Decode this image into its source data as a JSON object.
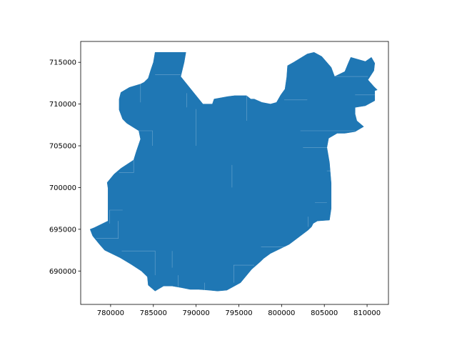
{
  "chart_data": {
    "type": "map",
    "title": "",
    "xlabel": "",
    "ylabel": "",
    "xlim": [
      776500,
      812500
    ],
    "ylim": [
      686000,
      717500
    ],
    "fill_color": "#1f77b4",
    "grid": false,
    "legend": false,
    "x_ticks": [
      780000,
      785000,
      790000,
      795000,
      800000,
      805000,
      810000
    ],
    "x_tick_labels": [
      "780000",
      "785000",
      "790000",
      "795000",
      "800000",
      "805000",
      "810000"
    ],
    "y_ticks": [
      690000,
      695000,
      700000,
      705000,
      710000,
      715000
    ],
    "y_tick_labels": [
      "690000",
      "695000",
      "700000",
      "705000",
      "710000",
      "715000"
    ],
    "polygon": [
      [
        785200,
        716200
      ],
      [
        788800,
        716200
      ],
      [
        788600,
        715000
      ],
      [
        788200,
        713300
      ],
      [
        789700,
        711400
      ],
      [
        790800,
        710000
      ],
      [
        791900,
        710000
      ],
      [
        792100,
        710600
      ],
      [
        793700,
        710900
      ],
      [
        794500,
        711000
      ],
      [
        795900,
        711000
      ],
      [
        796400,
        710600
      ],
      [
        796800,
        710600
      ],
      [
        797700,
        710200
      ],
      [
        798700,
        710000
      ],
      [
        799400,
        710200
      ],
      [
        799900,
        711100
      ],
      [
        800400,
        711800
      ],
      [
        800600,
        713200
      ],
      [
        800700,
        714600
      ],
      [
        801400,
        715000
      ],
      [
        803000,
        716000
      ],
      [
        803800,
        716200
      ],
      [
        804700,
        715700
      ],
      [
        805800,
        714400
      ],
      [
        806200,
        713300
      ],
      [
        807400,
        713900
      ],
      [
        807800,
        714900
      ],
      [
        808100,
        715600
      ],
      [
        809800,
        715100
      ],
      [
        810500,
        715600
      ],
      [
        810900,
        714900
      ],
      [
        810800,
        714000
      ],
      [
        810100,
        712900
      ],
      [
        810800,
        712100
      ],
      [
        811200,
        711700
      ],
      [
        810900,
        711600
      ],
      [
        810900,
        710400
      ],
      [
        809800,
        709800
      ],
      [
        808600,
        709600
      ],
      [
        808600,
        708800
      ],
      [
        808800,
        708000
      ],
      [
        809600,
        707300
      ],
      [
        808600,
        706700
      ],
      [
        807400,
        706500
      ],
      [
        806500,
        706500
      ],
      [
        805500,
        705900
      ],
      [
        805300,
        704800
      ],
      [
        805600,
        703000
      ],
      [
        805800,
        700500
      ],
      [
        805800,
        697500
      ],
      [
        805600,
        696100
      ],
      [
        804200,
        696000
      ],
      [
        803700,
        695700
      ],
      [
        803500,
        695300
      ],
      [
        803100,
        694900
      ],
      [
        800900,
        693200
      ],
      [
        798700,
        692100
      ],
      [
        797900,
        691500
      ],
      [
        797500,
        691100
      ],
      [
        796500,
        690200
      ],
      [
        795200,
        688600
      ],
      [
        793600,
        687700
      ],
      [
        792500,
        687600
      ],
      [
        791500,
        687700
      ],
      [
        790300,
        687800
      ],
      [
        789300,
        687800
      ],
      [
        788300,
        688000
      ],
      [
        787200,
        688200
      ],
      [
        786200,
        688200
      ],
      [
        785200,
        687600
      ],
      [
        784400,
        688300
      ],
      [
        784300,
        689300
      ],
      [
        783600,
        690000
      ],
      [
        782400,
        690800
      ],
      [
        781100,
        691600
      ],
      [
        779300,
        692500
      ],
      [
        778700,
        693200
      ],
      [
        777900,
        694200
      ],
      [
        777600,
        695000
      ],
      [
        778100,
        695200
      ],
      [
        779700,
        696000
      ],
      [
        779700,
        699900
      ],
      [
        779600,
        700600
      ],
      [
        780400,
        701600
      ],
      [
        781200,
        702300
      ],
      [
        782700,
        703300
      ],
      [
        783000,
        704300
      ],
      [
        783500,
        705800
      ],
      [
        783300,
        706800
      ],
      [
        781900,
        707700
      ],
      [
        781400,
        708200
      ],
      [
        781000,
        709300
      ],
      [
        781000,
        710600
      ],
      [
        781200,
        711400
      ],
      [
        782200,
        712000
      ],
      [
        783500,
        712400
      ],
      [
        783900,
        712600
      ],
      [
        784400,
        713100
      ],
      [
        784700,
        714100
      ],
      [
        785000,
        715000
      ],
      [
        785200,
        716200
      ]
    ],
    "seams": [
      [
        [
          783500,
          712400
        ],
        [
          783500,
          710200
        ]
      ],
      [
        [
          785200,
          713500
        ],
        [
          788200,
          713500
        ]
      ],
      [
        [
          781100,
          706800
        ],
        [
          784900,
          706800
        ],
        [
          784900,
          705000
        ]
      ],
      [
        [
          802500,
          704800
        ],
        [
          805300,
          704800
        ]
      ],
      [
        [
          802200,
          706800
        ],
        [
          806500,
          706800
        ],
        [
          808600,
          706800
        ]
      ],
      [
        [
          806300,
          713300
        ],
        [
          808600,
          713300
        ],
        [
          810100,
          713300
        ]
      ],
      [
        [
          808600,
          711100
        ],
        [
          810900,
          711100
        ]
      ],
      [
        [
          790000,
          709400
        ],
        [
          790000,
          705000
        ]
      ],
      [
        [
          795900,
          711000
        ],
        [
          795900,
          708000
        ]
      ],
      [
        [
          800300,
          710500
        ],
        [
          803000,
          710500
        ]
      ],
      [
        [
          779900,
          695700
        ],
        [
          779900,
          697300
        ],
        [
          781400,
          697300
        ]
      ],
      [
        [
          778300,
          693900
        ],
        [
          780900,
          693900
        ],
        [
          780900,
          696000
        ]
      ],
      [
        [
          781300,
          692400
        ],
        [
          785200,
          692400
        ],
        [
          785200,
          689500
        ]
      ],
      [
        [
          782700,
          703300
        ],
        [
          782700,
          701800
        ],
        [
          781000,
          701800
        ]
      ],
      [
        [
          803100,
          696500
        ],
        [
          803100,
          695300
        ]
      ],
      [
        [
          800800,
          692900
        ],
        [
          797600,
          692900
        ]
      ],
      [
        [
          796800,
          690700
        ],
        [
          794400,
          690700
        ],
        [
          794400,
          688600
        ]
      ],
      [
        [
          791000,
          688600
        ],
        [
          791000,
          687700
        ]
      ],
      [
        [
          787900,
          689500
        ],
        [
          787900,
          688100
        ]
      ],
      [
        [
          787200,
          692400
        ],
        [
          787200,
          690400
        ]
      ],
      [
        [
          794200,
          702700
        ],
        [
          794200,
          700000
        ]
      ],
      [
        [
          803900,
          698200
        ],
        [
          805300,
          698200
        ]
      ],
      [
        [
          805300,
          702000
        ],
        [
          805800,
          702000
        ]
      ],
      [
        [
          788900,
          711300
        ],
        [
          788900,
          709600
        ]
      ]
    ]
  }
}
